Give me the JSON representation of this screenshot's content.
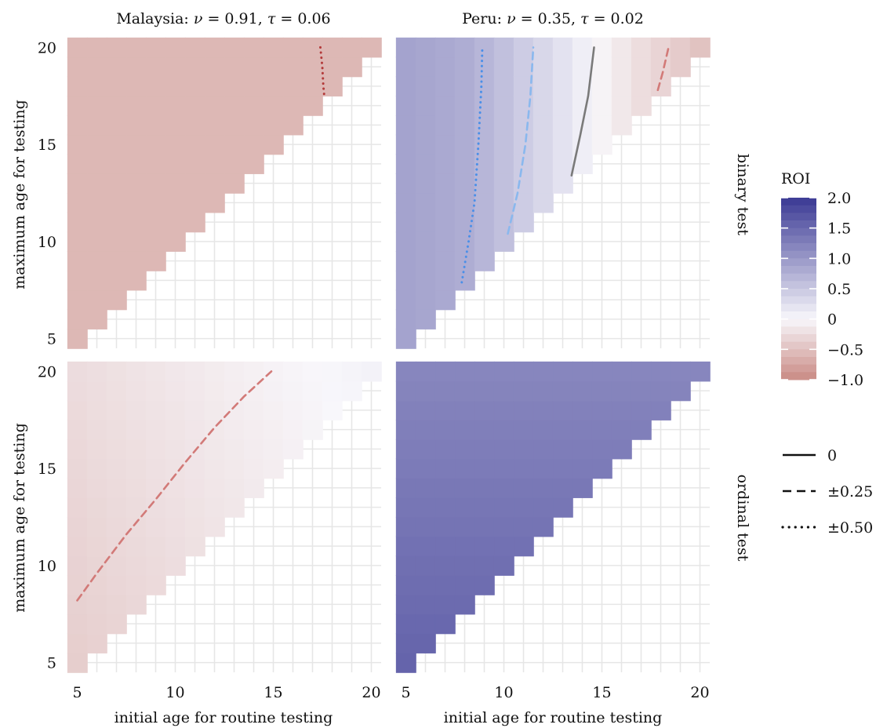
{
  "chart_data": {
    "type": "heatmap",
    "x_label": "initial age for routine testing",
    "y_label": "maximum age for testing",
    "x_range": [
      4.5,
      20.5
    ],
    "y_range": [
      4.5,
      20.5
    ],
    "x_ticks": [
      "5",
      "10",
      "15",
      "20"
    ],
    "y_ticks": [
      "5",
      "10",
      "15",
      "20"
    ],
    "grid": true,
    "column_titles": [
      {
        "country": "Malaysia: ",
        "p1_sym": "ν",
        "p1_val": "0.91",
        "p2_sym": "τ",
        "p2_val": "0.06"
      },
      {
        "country": "Peru: ",
        "p1_sym": "ν",
        "p1_val": "0.35",
        "p2_sym": "τ",
        "p2_val": "0.02"
      }
    ],
    "row_labels": [
      "binary test",
      "ordinal test"
    ],
    "color_scale": {
      "title": "ROI",
      "range": [
        -1.0,
        2.0
      ],
      "ticks": [
        "2.0",
        "1.5",
        "1.0",
        "0.5",
        "0",
        "−0.5",
        "−1.0"
      ],
      "tick_values": [
        2.0,
        1.5,
        1.0,
        0.5,
        0,
        -0.5,
        -1.0
      ],
      "high_color": "#3a3994",
      "zero_color": "#f8f7fb",
      "low_color": "#c98a83"
    },
    "line_legend": [
      {
        "label": "0",
        "style": "solid"
      },
      {
        "label": "±0.25",
        "style": "dashed"
      },
      {
        "label": "±0.50",
        "style": "dotted"
      }
    ],
    "panels": [
      {
        "column": "Malaysia",
        "row": "binary test",
        "roi_surface": {
          "kind": "constant",
          "value": -0.58
        },
        "contours": [
          {
            "level": -0.5,
            "style": "dotted",
            "color": "#b33a3a",
            "points": [
              [
                17.4,
                20.0
              ],
              [
                17.5,
                19.0
              ],
              [
                17.55,
                18.0
              ],
              [
                17.6,
                17.5
              ]
            ]
          }
        ]
      },
      {
        "column": "Peru",
        "row": "binary test",
        "roi_surface": {
          "kind": "by_initial_age",
          "x": [
            5,
            6,
            7,
            8,
            9,
            10,
            11,
            12,
            13,
            14,
            15,
            16,
            17,
            18,
            19,
            20
          ],
          "values": [
            0.88,
            0.85,
            0.82,
            0.78,
            0.68,
            0.58,
            0.45,
            0.34,
            0.22,
            0.1,
            -0.04,
            -0.14,
            -0.24,
            -0.32,
            -0.4,
            -0.48
          ]
        },
        "contours": [
          {
            "level": 0.5,
            "style": "dotted",
            "color": "#4a8fe8",
            "points": [
              [
                7.85,
                7.9
              ],
              [
                8.2,
                10.0
              ],
              [
                8.5,
                12.0
              ],
              [
                8.7,
                15.0
              ],
              [
                8.85,
                18.0
              ],
              [
                8.9,
                20.0
              ]
            ]
          },
          {
            "level": 0.25,
            "style": "dashed",
            "color": "#8ab8ee",
            "points": [
              [
                10.2,
                10.4
              ],
              [
                10.7,
                12.5
              ],
              [
                11.1,
                15.0
              ],
              [
                11.35,
                17.5
              ],
              [
                11.5,
                20.0
              ]
            ]
          },
          {
            "level": 0.0,
            "style": "solid",
            "color": "#7a7a7a",
            "points": [
              [
                13.45,
                13.4
              ],
              [
                13.9,
                15.5
              ],
              [
                14.3,
                17.5
              ],
              [
                14.6,
                20.0
              ]
            ]
          },
          {
            "level": -0.25,
            "style": "dashed",
            "color": "#d27a78",
            "points": [
              [
                17.85,
                17.8
              ],
              [
                18.1,
                18.7
              ],
              [
                18.4,
                20.0
              ]
            ]
          }
        ]
      },
      {
        "column": "Malaysia",
        "row": "ordinal test",
        "roi_surface": {
          "kind": "linear",
          "base": -0.38,
          "per_initial_age": 0.02,
          "per_max_age": 0.009
        },
        "contours": [
          {
            "level": -0.25,
            "style": "dashed",
            "color": "#d27a78",
            "points": [
              [
                5.0,
                8.2
              ],
              [
                6.0,
                9.6
              ],
              [
                7.5,
                11.6
              ],
              [
                9.0,
                13.4
              ],
              [
                10.5,
                15.3
              ],
              [
                12.0,
                17.1
              ],
              [
                13.5,
                18.7
              ],
              [
                14.9,
                20.0
              ]
            ]
          }
        ]
      },
      {
        "column": "Peru",
        "row": "ordinal test",
        "roi_surface": {
          "kind": "linear",
          "base": 1.55,
          "per_initial_age": 0.0,
          "per_max_age": -0.024
        },
        "contours": []
      }
    ]
  }
}
